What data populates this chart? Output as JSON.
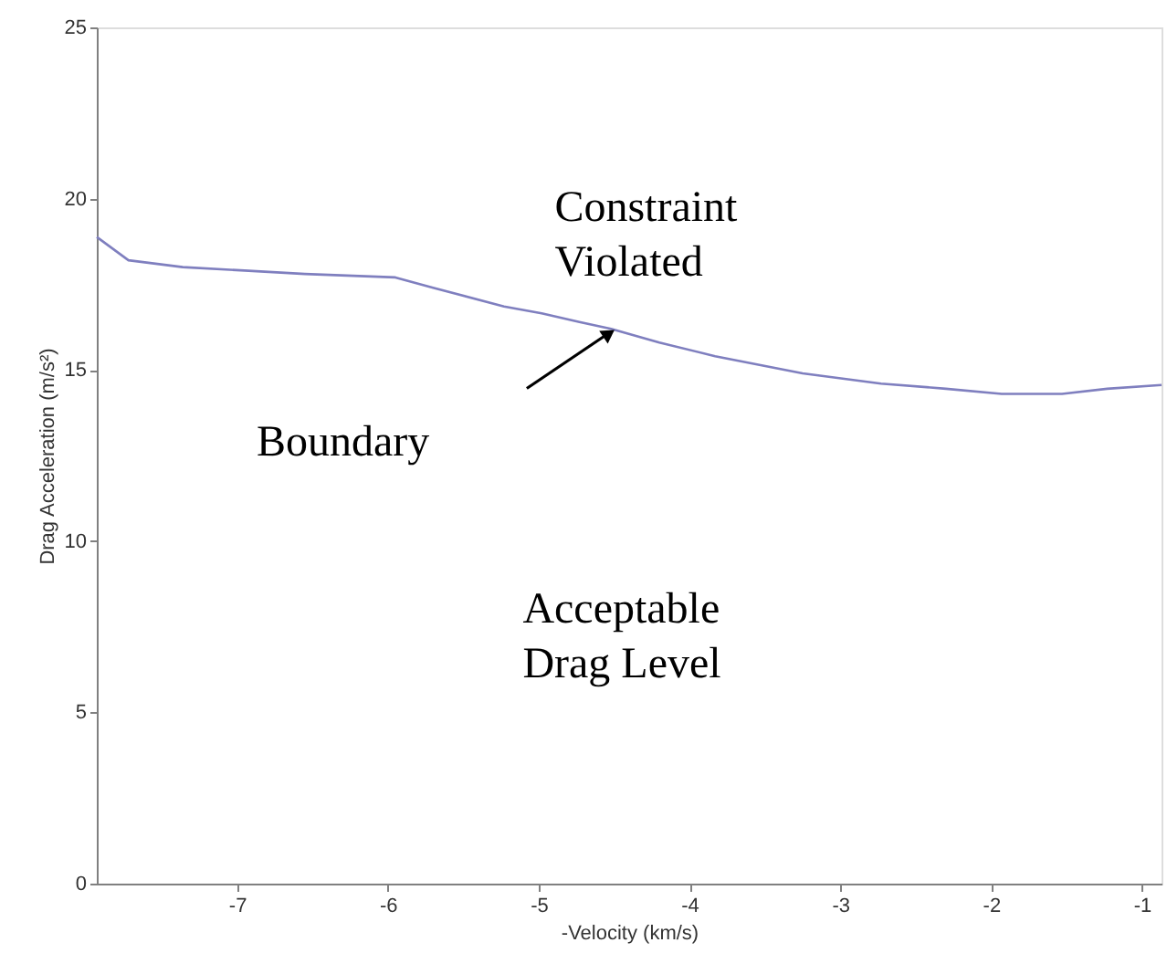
{
  "chart_data": {
    "type": "line",
    "xlabel": "-Velocity (km/s)",
    "ylabel": "Drag Acceleration (m/s²)",
    "x": [
      -7.93,
      -7.72,
      -7.36,
      -6.95,
      -6.55,
      -5.95,
      -5.7,
      -5.23,
      -4.98,
      -4.73,
      -4.52,
      -4.2,
      -3.83,
      -3.25,
      -2.73,
      -2.3,
      -1.93,
      -1.53,
      -1.23,
      -0.87
    ],
    "series": [
      {
        "color": "#7f7fbf",
        "values": [
          18.88,
          18.2,
          18.0,
          17.9,
          17.8,
          17.7,
          17.4,
          16.85,
          16.65,
          16.4,
          16.2,
          15.8,
          15.4,
          14.9,
          14.6,
          14.45,
          14.3,
          14.3,
          14.45,
          14.56
        ]
      }
    ],
    "xlim": [
      -7.93,
      -0.87
    ],
    "ylim": [
      0,
      25
    ],
    "xticks": [
      -7,
      -6,
      -5,
      -4,
      -3,
      -2,
      -1
    ],
    "yticks": [
      0,
      5,
      10,
      15,
      20,
      25
    ],
    "grid": false,
    "marker": "none",
    "line_style": "solid",
    "annotations": [
      "Constraint Violated",
      "Boundary",
      "Acceptable Drag Level"
    ]
  }
}
